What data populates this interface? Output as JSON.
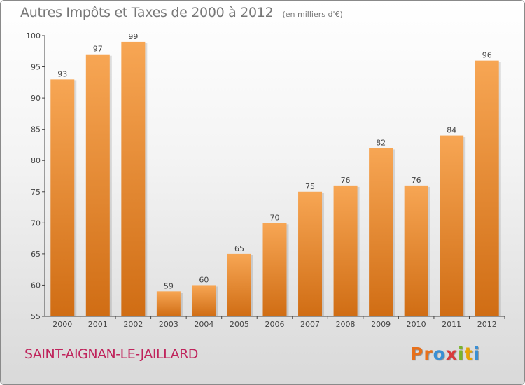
{
  "header": {
    "title": "Autres Impôts et Taxes de 2000 à 2012",
    "subtitle": "(en milliers d'€)"
  },
  "footer": {
    "commune": "SAINT-AIGNAN-LE-JAILLARD",
    "logo_text": "Proxiti",
    "logo_colors": [
      "#e8701a",
      "#e8701a",
      "#3a8fd4",
      "#d93c3c",
      "#79b52a",
      "#e8a400",
      "#3a8fd4"
    ]
  },
  "colors": {
    "bar_light": "#f7a654",
    "bar_dark": "#d06d14",
    "axis": "#444444",
    "grid": "#cccccc"
  },
  "chart_data": {
    "type": "bar",
    "title": "Autres Impôts et Taxes de 2000 à 2012",
    "subtitle": "(en milliers d'€)",
    "categories": [
      "2000",
      "2001",
      "2002",
      "2003",
      "2004",
      "2005",
      "2006",
      "2007",
      "2008",
      "2009",
      "2010",
      "2011",
      "2012"
    ],
    "values": [
      93,
      97,
      99,
      59,
      60,
      65,
      70,
      75,
      76,
      82,
      76,
      84,
      96
    ],
    "ylim": [
      55,
      100
    ],
    "yticks": [
      55,
      60,
      65,
      70,
      75,
      80,
      85,
      90,
      95,
      100
    ],
    "grid": false,
    "data_labels": true
  }
}
